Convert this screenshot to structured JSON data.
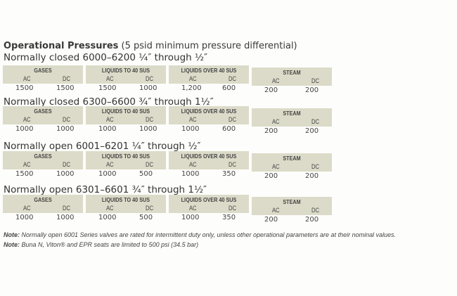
{
  "title": {
    "bold": "Operational Pressures",
    "rest": " (5 psid minimum pressure differential)"
  },
  "sections": [
    {
      "heading": "Normally closed 6000–6200 ¼″ through ½″",
      "groups": [
        {
          "name": "GASES",
          "ac": "1500",
          "dc": "1500"
        },
        {
          "name": "LIQUIDS TO 40 SUS",
          "ac": "1500",
          "dc": "1000"
        },
        {
          "name": "LIQUIDS OVER 40 SUS",
          "ac": "1,200",
          "dc": "600"
        },
        {
          "name": "STEAM",
          "ac": "200",
          "dc": "200"
        }
      ]
    },
    {
      "heading": "Normally closed 6300–6600 ¾″ through 1½″",
      "groups": [
        {
          "name": "GASES",
          "ac": "1000",
          "dc": "1000"
        },
        {
          "name": "LIQUIDS TO 40 SUS",
          "ac": "1000",
          "dc": "1000"
        },
        {
          "name": "LIQUIDS OVER 40 SUS",
          "ac": "1000",
          "dc": "600"
        },
        {
          "name": "STEAM",
          "ac": "200",
          "dc": "200"
        }
      ]
    },
    {
      "heading": "Normally open 6001–6201 ¼″ through ½″",
      "groups": [
        {
          "name": "GASES",
          "ac": "1500",
          "dc": "1000"
        },
        {
          "name": "LIQUIDS TO 40 SUS",
          "ac": "1000",
          "dc": "500"
        },
        {
          "name": "LIQUIDS OVER 40 SUS",
          "ac": "1000",
          "dc": "350"
        },
        {
          "name": "STEAM",
          "ac": "200",
          "dc": "200"
        }
      ]
    },
    {
      "heading": "Normally open 6301–6601 ¾″ through 1½″",
      "groups": [
        {
          "name": "GASES",
          "ac": "1000",
          "dc": "1000"
        },
        {
          "name": "LIQUIDS TO 40 SUS",
          "ac": "1000",
          "dc": "500"
        },
        {
          "name": "LIQUIDS OVER 40 SUS",
          "ac": "1000",
          "dc": "350"
        },
        {
          "name": "STEAM",
          "ac": "200",
          "dc": "200"
        }
      ]
    }
  ],
  "col_labels": {
    "ac": "AC",
    "dc": "DC"
  },
  "notes": [
    {
      "label": "Note:",
      "text": " Normally open 6001 Series valves are rated for intermittent duty only, unless other operational parameters are at their nominal values."
    },
    {
      "label": "Note:",
      "text": " Buna N, Viton® and EPR seats are limited to 500 psi (34.5 bar)"
    }
  ]
}
